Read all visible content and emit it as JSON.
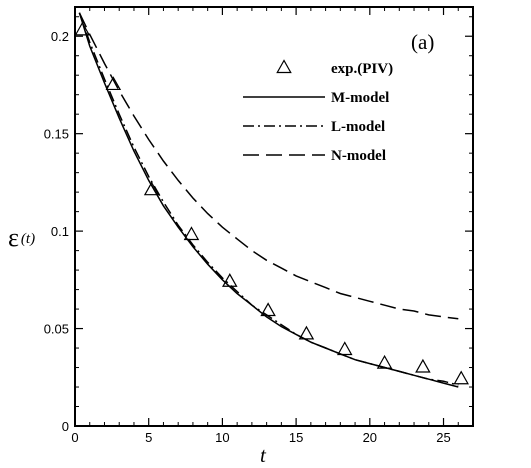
{
  "chart_data": {
    "type": "line",
    "panel_label": "(a)",
    "xlabel": "t",
    "ylabel": "ε",
    "ylabel_suffix": "(t)",
    "xlim": [
      0,
      27
    ],
    "ylim": [
      0,
      0.215
    ],
    "xticks": [
      0,
      5,
      10,
      15,
      20,
      25
    ],
    "xtick_labels": [
      "0",
      "5",
      "10",
      "15",
      "20",
      "25"
    ],
    "yticks": [
      0,
      0.05,
      0.1,
      0.15,
      0.2
    ],
    "ytick_labels": [
      "0",
      "0.05",
      "0.1",
      "0.15",
      "0.2"
    ],
    "grid": false,
    "legend_position": "top-right",
    "series": [
      {
        "name": "exp.(PIV)",
        "style": "triangle-markers",
        "x": [
          0.5,
          2.6,
          5.2,
          7.9,
          10.5,
          13.1,
          15.7,
          18.3,
          21.0,
          23.6,
          26.2
        ],
        "y": [
          0.203,
          0.175,
          0.121,
          0.098,
          0.074,
          0.059,
          0.047,
          0.039,
          0.032,
          0.03,
          0.024
        ]
      },
      {
        "name": "M-model",
        "style": "solid",
        "x": [
          0.3,
          1,
          2,
          3,
          4,
          5,
          6,
          7,
          8,
          9,
          10,
          11,
          12,
          13,
          14,
          15,
          16,
          17,
          18,
          19,
          20,
          21,
          22,
          23,
          24,
          25,
          26
        ],
        "y": [
          0.212,
          0.195,
          0.176,
          0.158,
          0.141,
          0.126,
          0.113,
          0.102,
          0.092,
          0.083,
          0.075,
          0.068,
          0.062,
          0.056,
          0.051,
          0.047,
          0.043,
          0.04,
          0.037,
          0.034,
          0.032,
          0.03,
          0.028,
          0.026,
          0.024,
          0.022,
          0.02
        ]
      },
      {
        "name": "L-model",
        "style": "dash-dot",
        "x": [
          0.3,
          1,
          2,
          3,
          4,
          5,
          6,
          7,
          8,
          9,
          10,
          11,
          12,
          13,
          14,
          15,
          16,
          17,
          18,
          19,
          20,
          21,
          22,
          23,
          24,
          25,
          26
        ],
        "y": [
          0.212,
          0.197,
          0.178,
          0.16,
          0.143,
          0.128,
          0.115,
          0.103,
          0.093,
          0.084,
          0.076,
          0.069,
          0.062,
          0.057,
          0.052,
          0.047,
          0.043,
          0.04,
          0.037,
          0.034,
          0.032,
          0.03,
          0.028,
          0.026,
          0.024,
          0.023,
          0.021
        ]
      },
      {
        "name": "N-model",
        "style": "dashed",
        "x": [
          0.3,
          1,
          2,
          3,
          4,
          5,
          6,
          7,
          8,
          9,
          10,
          11,
          12,
          13,
          14,
          15,
          16,
          17,
          18,
          19,
          20,
          21,
          22,
          23,
          24,
          25,
          26
        ],
        "y": [
          0.212,
          0.201,
          0.186,
          0.172,
          0.159,
          0.147,
          0.136,
          0.126,
          0.117,
          0.109,
          0.102,
          0.096,
          0.09,
          0.085,
          0.081,
          0.077,
          0.074,
          0.071,
          0.068,
          0.066,
          0.064,
          0.062,
          0.06,
          0.059,
          0.057,
          0.056,
          0.055
        ]
      }
    ]
  }
}
